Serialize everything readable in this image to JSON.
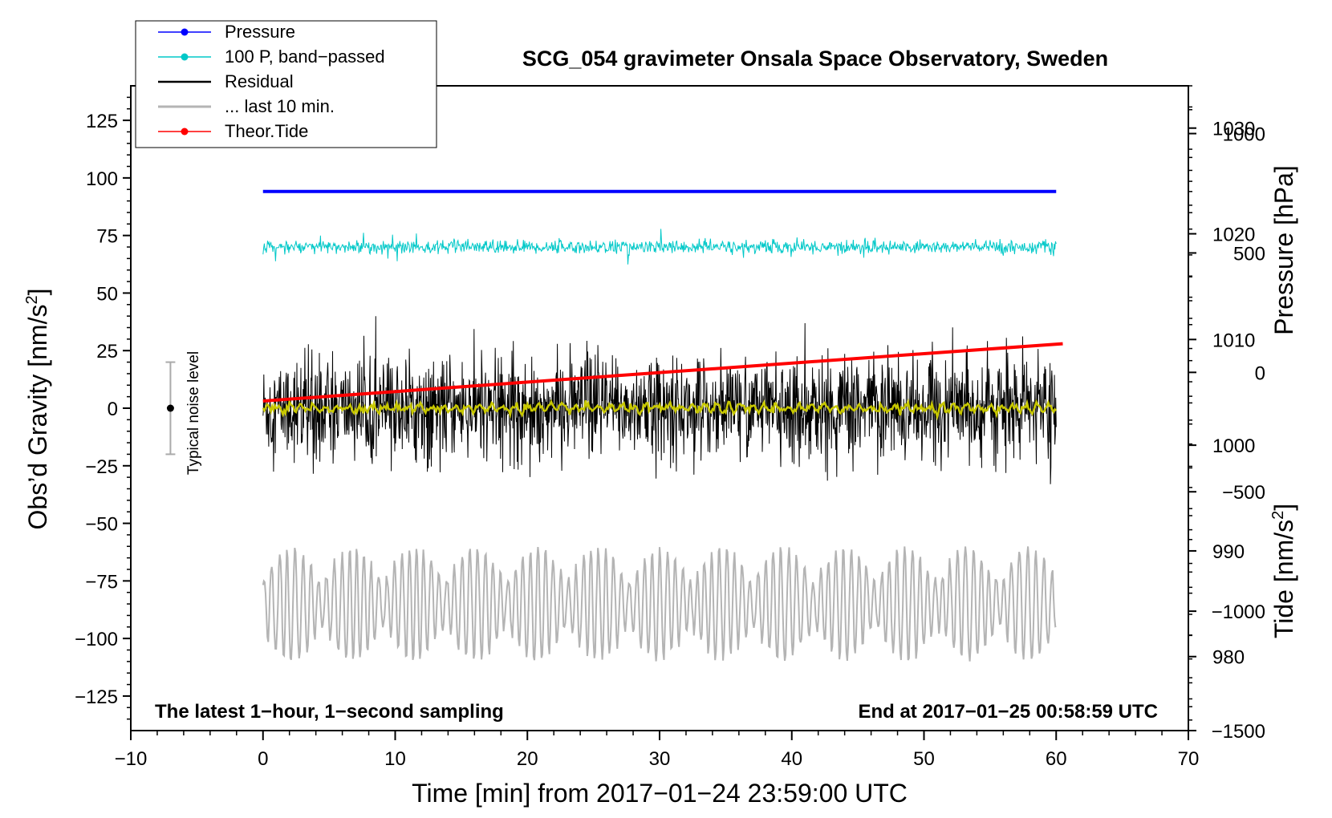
{
  "chart_data": {
    "type": "line",
    "title": "SCG_054 gravimeter Onsala Space Observatory, Sweden",
    "xlabel": "Time [min] from 2017−01−24 23:59:00 UTC",
    "ylabel_left": "Obs’d Gravity [nm/s²]",
    "ylabel_right_top": "Pressure [hPa]",
    "ylabel_right_bottom": "Tide [nm/s²]",
    "xlim": [
      -10,
      70
    ],
    "ylim": [
      -140,
      140
    ],
    "pressure_axis_range": [
      973,
      1034
    ],
    "tide_axis_range": [
      -1500,
      1200
    ],
    "x_ticks": [
      -10,
      0,
      10,
      20,
      30,
      40,
      50,
      60,
      70
    ],
    "x_tick_labels": [
      "−10",
      "0",
      "10",
      "20",
      "30",
      "40",
      "50",
      "60",
      "70"
    ],
    "y_ticks": [
      125,
      100,
      75,
      50,
      25,
      0,
      -25,
      -50,
      -75,
      -100,
      -125
    ],
    "y_tick_labels": [
      "125",
      "100",
      "75",
      "50",
      "25",
      "0",
      "−25",
      "−50",
      "−75",
      "−100",
      "−125"
    ],
    "pressure_ticks": [
      1030,
      1020,
      1010,
      1000,
      990,
      980
    ],
    "pressure_tick_labels": [
      "1030",
      "1020",
      "1010",
      "1000",
      "990",
      "980"
    ],
    "tide_ticks": [
      1000,
      500,
      0,
      -500,
      -1000,
      -1500
    ],
    "tide_tick_labels": [
      "1000",
      "500",
      "0",
      "−500",
      "−1000",
      "−1500"
    ],
    "legend": [
      {
        "label": "Pressure",
        "color": "#0000ff",
        "marker": true
      },
      {
        "label": "100 P, band−passed",
        "color": "#00c8c8",
        "marker": true
      },
      {
        "label": "Residual",
        "color": "#000000",
        "marker": false
      },
      {
        "label": "... last 10 min.",
        "color": "#b4b4b4",
        "marker": false
      },
      {
        "label": "Theor.Tide",
        "color": "#ff0000",
        "marker": true
      }
    ],
    "series": [
      {
        "name": "Pressure",
        "axis": "pressure",
        "color": "#0000ff",
        "x_range": [
          0,
          60
        ],
        "values_hPa": [
          1024.0,
          1024.0
        ]
      },
      {
        "name": "100 P, band−passed",
        "axis": "gravity",
        "color": "#00c8c8",
        "x_range": [
          0,
          60
        ],
        "mean": 70,
        "spread": 5
      },
      {
        "name": "Residual",
        "axis": "gravity",
        "color": "#000000",
        "x_range": [
          0,
          60
        ],
        "mean": 0,
        "spread": 30
      },
      {
        "name": "Residual smoothed",
        "axis": "gravity",
        "color": "#c8c800",
        "x_range": [
          0,
          60
        ],
        "mean": 0,
        "spread": 2
      },
      {
        "name": "... last 10 min.",
        "axis": "gravity",
        "color": "#b4b4b4",
        "x_range": [
          0,
          60
        ],
        "mean": -85,
        "spread": 25
      },
      {
        "name": "Theor.Tide",
        "axis": "tide",
        "color": "#ff0000",
        "x": [
          0,
          60.5
        ],
        "values_nms2": [
          -120,
          120
        ]
      }
    ],
    "noise_level": {
      "label": "Typical noise level",
      "x": -7,
      "range": [
        -20,
        20
      ]
    },
    "annotation_left": "The latest 1−hour, 1−second sampling",
    "annotation_right": "End at 2017−01−25 00:58:59 UTC"
  }
}
